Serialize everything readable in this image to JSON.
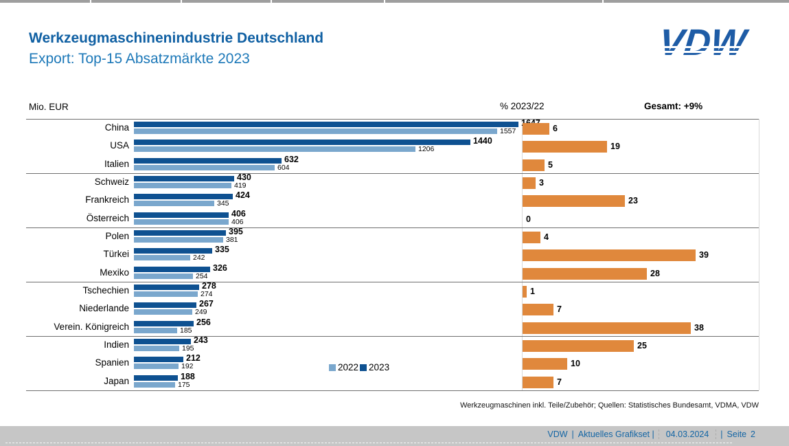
{
  "header": {
    "title": "Werkzeugmaschinenindustrie Deutschland",
    "subtitle": "Export: Top-15 Absatzmärkte 2023",
    "logo_text": "VDW"
  },
  "chart_header": {
    "unit_label": "Mio. EUR",
    "pct_label": "% 2023/22",
    "total_label": "Gesamt: +9%"
  },
  "legend": {
    "items": [
      {
        "label": "2022",
        "color": "#7aa7cd"
      },
      {
        "label": "2023",
        "color": "#0e5191"
      }
    ]
  },
  "chart_data": {
    "type": "bar",
    "title": "Werkzeugmaschinenindustrie Deutschland — Export: Top-15 Absatzmärkte 2023",
    "unit": "Mio. EUR",
    "orientation": "horizontal",
    "categories": [
      "China",
      "USA",
      "Italien",
      "Schweiz",
      "Frankreich",
      "Österreich",
      "Polen",
      "Türkei",
      "Mexiko",
      "Tschechien",
      "Niederlande",
      "Verein. Königreich",
      "Indien",
      "Spanien",
      "Japan"
    ],
    "series": [
      {
        "name": "2023",
        "color": "#0e5191",
        "values": [
          1647,
          1440,
          632,
          430,
          424,
          406,
          395,
          335,
          326,
          278,
          267,
          256,
          243,
          212,
          188
        ]
      },
      {
        "name": "2022",
        "color": "#7aa7cd",
        "values": [
          1557,
          1206,
          604,
          419,
          345,
          406,
          381,
          242,
          254,
          274,
          249,
          185,
          195,
          192,
          175
        ]
      }
    ],
    "pct_change_2023_22": {
      "label": "% 2023/22",
      "color": "#e0883c",
      "values": [
        6,
        19,
        5,
        3,
        23,
        0,
        4,
        39,
        28,
        1,
        7,
        38,
        25,
        10,
        7
      ]
    },
    "total_change": "Gesamt: +9%",
    "group_separators_after_rows": [
      3,
      6,
      9,
      12
    ],
    "legend_position": "bottom-center-left-panel",
    "grid": "group-separator-lines-only"
  },
  "footnote": "Werkzeugmaschinen inkl. Teile/Zubehör;  Quellen: Statistisches Bundesamt, VDMA, VDW",
  "footer": {
    "brand": "VDW",
    "sep1": "|",
    "section": "Aktuelles Grafikset |",
    "date": "04.03.2024",
    "sep2": "|",
    "page_label": "Seite",
    "page_number": "2"
  }
}
